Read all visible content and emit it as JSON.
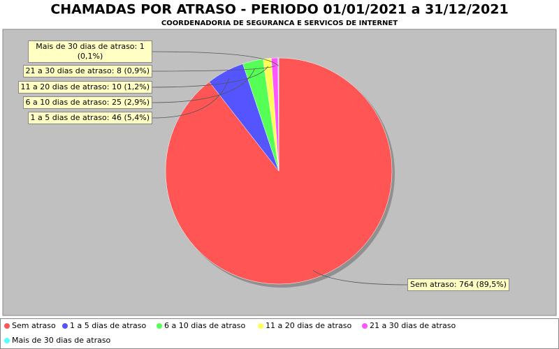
{
  "chart_data": {
    "type": "pie",
    "title": "CHAMADAS POR ATRASO - PERIODO 01/01/2021 a 31/12/2021",
    "subtitle": "COORDENADORIA DE SEGURANCA E SERVICOS DE INTERNET",
    "categories": [
      "Sem atraso",
      "1 a 5 dias de atraso",
      "6 a 10 dias de atraso",
      "11 a 20 dias de atraso",
      "21 a 30 dias de atraso",
      "Mais de 30 dias de atraso"
    ],
    "values": [
      764,
      46,
      25,
      10,
      8,
      1
    ],
    "value_labels": [
      "Sem atraso: 764 (89,5%)",
      "1 a 5 dias de atraso: 46 (5,4%)",
      "6 a 10 dias de atraso: 25 (2,9%)",
      "11 a 20 dias de atraso: 10 (1,2%)",
      "21 a 30 dias de atraso: 8 (0,9%)",
      "Mais de 30 dias de atraso: 1 (0,1%)"
    ],
    "colors": [
      "#ff5555",
      "#5555ff",
      "#55ff55",
      "#ffff55",
      "#ff55ff",
      "#55ffff"
    ],
    "legend": "bottom"
  }
}
